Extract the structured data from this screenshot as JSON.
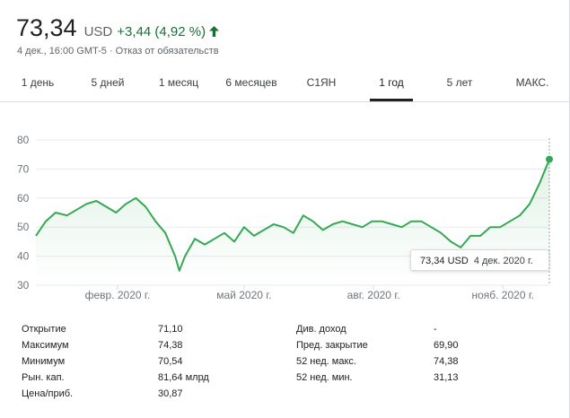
{
  "quote": {
    "price": "73,34",
    "currency": "USD",
    "change": "+3,44 (4,92 %)",
    "subline": "4 дек., 16:00 GMT-5 · Отказ от обязательств",
    "colors": {
      "up": "#137333",
      "line": "#34a853"
    },
    "icons": {
      "change_arrow": "arrow-up-icon"
    }
  },
  "tabs": [
    {
      "label": "1 день",
      "active": false
    },
    {
      "label": "5 дней",
      "active": false
    },
    {
      "label": "1 месяц",
      "active": false
    },
    {
      "label": "6 месяцев",
      "active": false
    },
    {
      "label": "С1ЯН",
      "active": false
    },
    {
      "label": "1 год",
      "active": true
    },
    {
      "label": "5 лет",
      "active": false
    },
    {
      "label": "МАКС.",
      "active": false
    }
  ],
  "tooltip": {
    "price": "73,34 USD",
    "date": "4 дек. 2020 г."
  },
  "chart_data": {
    "type": "line",
    "title": "",
    "xlabel": "",
    "ylabel": "",
    "ylim": [
      30,
      80
    ],
    "yticks": [
      30,
      40,
      50,
      60,
      70,
      80
    ],
    "xticklabels": [
      "февр. 2020 г.",
      "май 2020 г.",
      "авг. 2020 г.",
      "нояб. 2020 г."
    ],
    "xticks_dates": [
      "2020-02-01",
      "2020-05-01",
      "2020-08-01",
      "2020-11-01"
    ],
    "grid": true,
    "series": [
      {
        "x": [
          "2019-12-05",
          "2019-12-12",
          "2019-12-19",
          "2019-12-27",
          "2020-01-03",
          "2020-01-10",
          "2020-01-17",
          "2020-01-24",
          "2020-01-31",
          "2020-02-07",
          "2020-02-14",
          "2020-02-21",
          "2020-02-28",
          "2020-03-06",
          "2020-03-13",
          "2020-03-16",
          "2020-03-20",
          "2020-03-27",
          "2020-04-03",
          "2020-04-10",
          "2020-04-17",
          "2020-04-24",
          "2020-05-01",
          "2020-05-08",
          "2020-05-15",
          "2020-05-22",
          "2020-05-29",
          "2020-06-05",
          "2020-06-12",
          "2020-06-19",
          "2020-06-26",
          "2020-07-03",
          "2020-07-10",
          "2020-07-17",
          "2020-07-24",
          "2020-07-31",
          "2020-08-07",
          "2020-08-14",
          "2020-08-21",
          "2020-08-28",
          "2020-09-04",
          "2020-09-11",
          "2020-09-18",
          "2020-09-25",
          "2020-10-02",
          "2020-10-09",
          "2020-10-16",
          "2020-10-23",
          "2020-10-30",
          "2020-11-06",
          "2020-11-13",
          "2020-11-20",
          "2020-11-27",
          "2020-12-04"
        ],
        "values": [
          47,
          52,
          55,
          54,
          56,
          58,
          59,
          57,
          55,
          58,
          60,
          57,
          52,
          48,
          40,
          35,
          40,
          46,
          44,
          46,
          48,
          45,
          50,
          47,
          49,
          51,
          50,
          48,
          54,
          52,
          49,
          51,
          52,
          51,
          50,
          52,
          52,
          51,
          50,
          52,
          52,
          50,
          48,
          45,
          43,
          47,
          47,
          50,
          50,
          52,
          54,
          58,
          65,
          73.34
        ]
      }
    ]
  },
  "stats": {
    "left": [
      {
        "label": "Открытие",
        "value": "71,10"
      },
      {
        "label": "Максимум",
        "value": "74,38"
      },
      {
        "label": "Минимум",
        "value": "70,54"
      },
      {
        "label": "Рын. кап.",
        "value": "81,64 млрд"
      },
      {
        "label": "Цена/приб.",
        "value": "30,87"
      }
    ],
    "right": [
      {
        "label": "Див. доход",
        "value": "-"
      },
      {
        "label": "Пред. закрытие",
        "value": "69,90"
      },
      {
        "label": "52 нед. макс.",
        "value": "74,38"
      },
      {
        "label": "52 нед. мин.",
        "value": "31,13"
      }
    ]
  }
}
